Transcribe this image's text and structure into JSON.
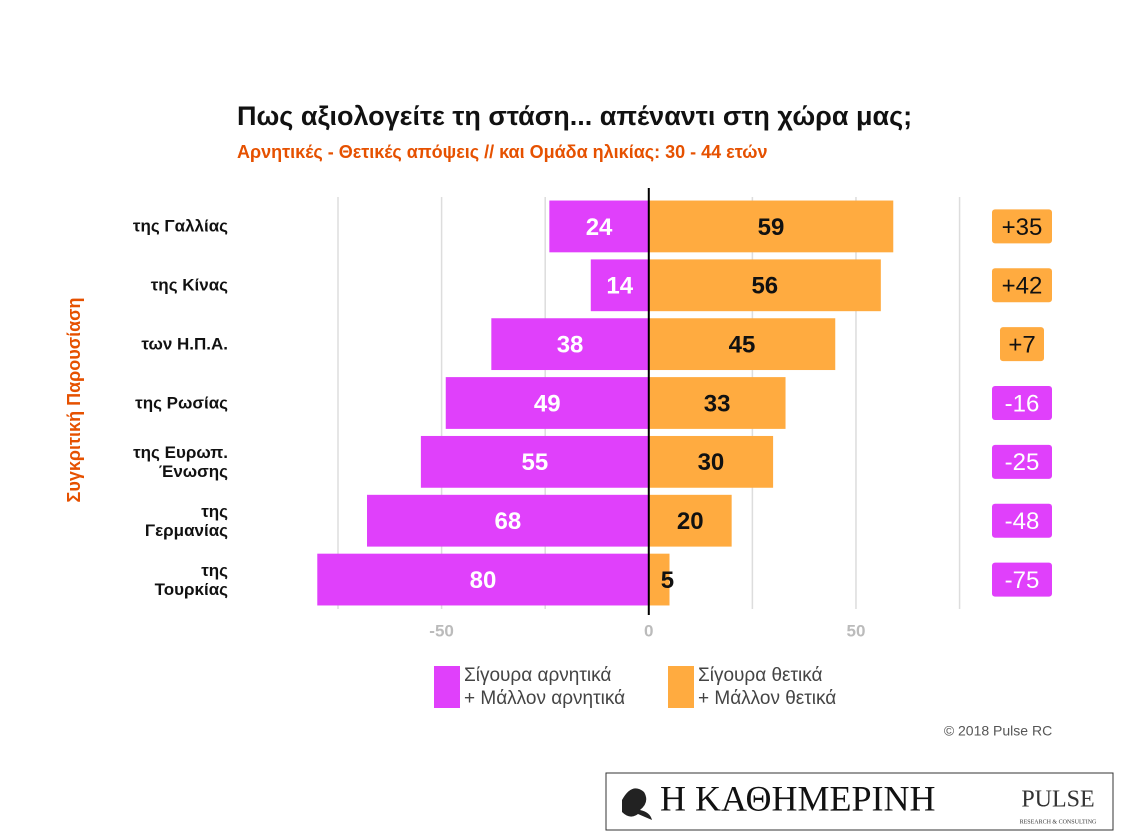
{
  "chart_data": {
    "type": "diverging_bar",
    "title": "Πως αξιολογείτε τη στάση... απέναντι στη χώρα μας;",
    "subtitle": "Αρνητικές - Θετικές απόψεις // και Ομάδα ηλικίας: 30 - 44 ετών",
    "y_label": "Συγκριτική  Παρουσίαση",
    "categories": [
      "της Γαλλίας",
      "της Κίνας",
      "των Η.Π.Α.",
      "της Ρωσίας",
      "της Ευρωπ.\nΈνωσης",
      "της\nΓερμανίας",
      "της\nΤουρκίας"
    ],
    "series": [
      {
        "name": "Σίγουρα αρνητικά\n+ Μάλλον αρνητικά",
        "color": "#e040fb",
        "values": [
          -24,
          -14,
          -38,
          -49,
          -55,
          -68,
          -80
        ],
        "value_labels": [
          "24",
          "14",
          "38",
          "49",
          "55",
          "68",
          "80"
        ]
      },
      {
        "name": "Σίγουρα θετικά\n+ Μάλλον θετικά",
        "color": "#ffab40",
        "values": [
          59,
          56,
          45,
          33,
          30,
          20,
          5
        ]
      }
    ],
    "net": {
      "values": [
        35,
        42,
        7,
        -16,
        -25,
        -48,
        -75
      ],
      "value_labels": [
        "+35",
        "+42",
        "+7",
        "-16",
        "-25",
        "-48",
        "-75"
      ]
    },
    "xlim": [
      -82,
      78
    ],
    "xticks": [
      -50,
      0,
      50
    ],
    "minor_grid": [
      -75,
      -25,
      25,
      75
    ],
    "grid": true,
    "copyright": "© 2018 Pulse RC",
    "watermark": {
      "name": "PULSE",
      "tagline": "RESEARCH & CONSULTING"
    },
    "footer": {
      "newspaper": "Η ΚΑΘΗΜΕΡΙΝΗ",
      "brand": "PULSE",
      "tagline": "RESEARCH & CONSULTING"
    }
  }
}
